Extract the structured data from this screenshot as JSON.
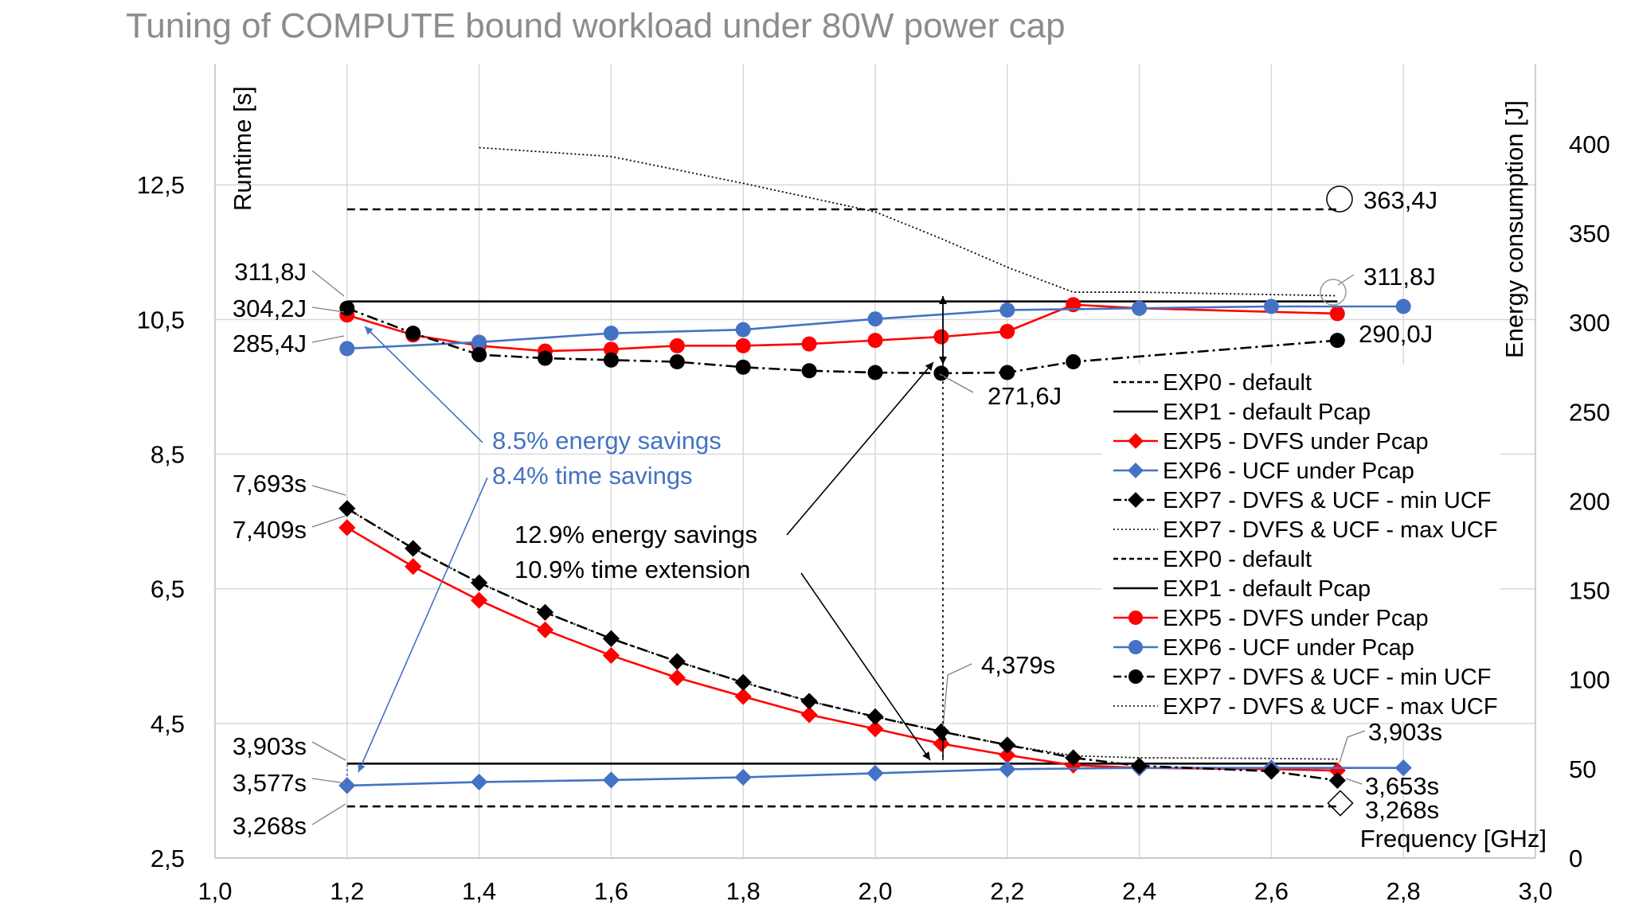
{
  "chart_data": {
    "type": "line",
    "title": "Tuning of COMPUTE bound workload under 80W power cap",
    "xlabel": "Frequency [GHz]",
    "ylabel": "Runtime [s]",
    "y2label": "Energy consumption [J]",
    "xlim": [
      1.0,
      3.0
    ],
    "ylim": [
      2.5,
      14.3
    ],
    "y2lim": [
      0,
      445
    ],
    "x_ticks": [
      "1,0",
      "1,2",
      "1,4",
      "1,6",
      "1,8",
      "2,0",
      "2,2",
      "2,4",
      "2,6",
      "2,8",
      "3,0"
    ],
    "y_ticks": [
      "2,5",
      "4,5",
      "6,5",
      "8,5",
      "10,5",
      "12,5"
    ],
    "y2_ticks": [
      "0",
      "50",
      "100",
      "150",
      "200",
      "250",
      "300",
      "350",
      "400"
    ],
    "legend_position": "right",
    "legend": [
      {
        "label": "EXP0 - default",
        "style": "dashed",
        "color": "#000000",
        "marker": "none"
      },
      {
        "label": "EXP1 - default Pcap",
        "style": "solid",
        "color": "#000000",
        "marker": "none"
      },
      {
        "label": "EXP5 - DVFS under Pcap",
        "style": "solid",
        "color": "#ff0000",
        "marker": "diamond"
      },
      {
        "label": "EXP6 - UCF under Pcap",
        "style": "solid",
        "color": "#4472c4",
        "marker": "diamond"
      },
      {
        "label": "EXP7 - DVFS & UCF - min UCF",
        "style": "dashdot",
        "color": "#000000",
        "marker": "diamond"
      },
      {
        "label": "EXP7 - DVFS & UCF - max UCF",
        "style": "dotted",
        "color": "#000000",
        "marker": "none"
      },
      {
        "label": "EXP0 - default",
        "style": "dashed",
        "color": "#000000",
        "marker": "none"
      },
      {
        "label": "EXP1 - default Pcap",
        "style": "solid",
        "color": "#000000",
        "marker": "none"
      },
      {
        "label": "EXP5 - DVFS under Pcap",
        "style": "solid",
        "color": "#ff0000",
        "marker": "circle"
      },
      {
        "label": "EXP6 - UCF under Pcap",
        "style": "solid",
        "color": "#4472c4",
        "marker": "circle"
      },
      {
        "label": "EXP7 - DVFS & UCF - min UCF",
        "style": "dashdot",
        "color": "#000000",
        "marker": "circle"
      },
      {
        "label": "EXP7 - DVFS & UCF -  max UCF",
        "style": "dotted",
        "color": "#000000",
        "marker": "none"
      }
    ],
    "runtime_series": [
      {
        "name": "EXP0 - default",
        "axis": "left",
        "style": "dashed",
        "color": "#000000",
        "marker": "none",
        "x": [
          1.2,
          2.7
        ],
        "y": [
          3.268,
          3.268
        ]
      },
      {
        "name": "EXP1 - default Pcap",
        "axis": "left",
        "style": "solid",
        "color": "#000000",
        "marker": "none",
        "x": [
          1.2,
          2.7
        ],
        "y": [
          3.903,
          3.903
        ]
      },
      {
        "name": "EXP5 - DVFS under Pcap",
        "axis": "left",
        "style": "solid",
        "color": "#ff0000",
        "marker": "diamond",
        "x": [
          1.2,
          1.3,
          1.4,
          1.5,
          1.6,
          1.7,
          1.8,
          1.9,
          2.0,
          2.1,
          2.2,
          2.3,
          2.4,
          2.6,
          2.7
        ],
        "y": [
          7.409,
          6.83,
          6.33,
          5.89,
          5.51,
          5.18,
          4.9,
          4.63,
          4.42,
          4.2,
          4.03,
          3.88,
          3.84,
          3.82,
          3.8
        ]
      },
      {
        "name": "EXP6 - UCF under Pcap",
        "axis": "left",
        "style": "solid",
        "color": "#4472c4",
        "marker": "diamond",
        "x": [
          1.2,
          1.4,
          1.6,
          1.8,
          2.0,
          2.2,
          2.4,
          2.6,
          2.8
        ],
        "y": [
          3.577,
          3.63,
          3.66,
          3.7,
          3.76,
          3.82,
          3.84,
          3.84,
          3.84
        ]
      },
      {
        "name": "EXP7 - DVFS & UCF - min UCF",
        "axis": "left",
        "style": "dashdot",
        "color": "#000000",
        "marker": "diamond",
        "x": [
          1.2,
          1.3,
          1.4,
          1.5,
          1.6,
          1.7,
          1.8,
          1.9,
          2.0,
          2.1,
          2.2,
          2.3,
          2.4,
          2.6,
          2.7
        ],
        "y": [
          7.693,
          7.1,
          6.59,
          6.15,
          5.76,
          5.42,
          5.11,
          4.83,
          4.6,
          4.379,
          4.18,
          3.99,
          3.87,
          3.79,
          3.653
        ]
      },
      {
        "name": "EXP7 - DVFS & UCF - max UCF",
        "axis": "left",
        "style": "dotted",
        "color": "#000000",
        "marker": "none",
        "x": [
          1.2,
          1.3,
          1.4,
          1.5,
          1.6,
          1.7,
          1.8,
          1.9,
          2.0,
          2.1,
          2.2,
          2.3,
          2.4,
          2.6,
          2.7
        ],
        "y": [
          7.693,
          7.1,
          6.59,
          6.15,
          5.76,
          5.42,
          5.11,
          4.83,
          4.6,
          4.379,
          4.18,
          4.02,
          3.99,
          3.98,
          3.97
        ]
      }
    ],
    "energy_series": [
      {
        "name": "EXP0 - default",
        "axis": "right",
        "style": "dashed",
        "color": "#000000",
        "marker": "none",
        "x": [
          1.2,
          2.7
        ],
        "y": [
          363.4,
          363.4
        ]
      },
      {
        "name": "EXP1 - default Pcap",
        "axis": "right",
        "style": "solid",
        "color": "#000000",
        "marker": "none",
        "x": [
          1.2,
          2.7
        ],
        "y": [
          311.8,
          311.8
        ]
      },
      {
        "name": "EXP5 - DVFS under Pcap",
        "axis": "right",
        "style": "solid",
        "color": "#ff0000",
        "marker": "circle",
        "x": [
          1.2,
          1.3,
          1.4,
          1.5,
          1.6,
          1.7,
          1.8,
          1.9,
          2.0,
          2.1,
          2.2,
          2.3,
          2.4,
          2.7
        ],
        "y": [
          304.2,
          293,
          287,
          284,
          285,
          287,
          287,
          288,
          290,
          292,
          295,
          310,
          308,
          305
        ]
      },
      {
        "name": "EXP6 - UCF under Pcap",
        "axis": "right",
        "style": "solid",
        "color": "#4472c4",
        "marker": "circle",
        "x": [
          1.2,
          1.4,
          1.6,
          1.8,
          2.0,
          2.2,
          2.4,
          2.6,
          2.8
        ],
        "y": [
          285.4,
          289,
          294,
          296,
          302,
          307,
          308,
          309,
          309
        ]
      },
      {
        "name": "EXP7 - DVFS & UCF - min UCF",
        "axis": "right",
        "style": "dashdot",
        "color": "#000000",
        "marker": "circle",
        "x": [
          1.2,
          1.3,
          1.4,
          1.5,
          1.6,
          1.7,
          1.8,
          1.9,
          2.0,
          2.1,
          2.2,
          2.3,
          2.7
        ],
        "y": [
          308,
          294,
          282,
          280,
          279,
          278,
          275,
          273,
          272,
          271.6,
          272,
          278,
          290
        ]
      },
      {
        "name": "EXP7 - DVFS & UCF - max UCF",
        "axis": "right",
        "style": "dotted",
        "color": "#000000",
        "marker": "none",
        "x": [
          1.4,
          1.6,
          1.8,
          2.0,
          2.1,
          2.2,
          2.3,
          2.4,
          2.7
        ],
        "y": [
          398,
          393,
          378,
          362,
          347,
          331,
          317,
          317,
          315
        ]
      }
    ],
    "annotations": {
      "e_363": "363,4J",
      "e_311_right": "311,8J",
      "e_290": "290,0J",
      "e_2716": "271,6J",
      "e_311_left": "311,8J",
      "e_304": "304,2J",
      "e_285": "285,4J",
      "blue_energy": "8.5% energy savings",
      "blue_time": "8.4% time savings",
      "r_7693": "7,693s",
      "r_7409": "7,409s",
      "black_energy": "12.9% energy savings",
      "black_time": "10.9% time extension",
      "r_4379": "4,379s",
      "r_3903_left": "3,903s",
      "r_3577": "3,577s",
      "r_3268_left": "3,268s",
      "r_3903_right": "3,903s",
      "r_3653": "3,653s",
      "r_3268_right": "3,268s"
    }
  }
}
